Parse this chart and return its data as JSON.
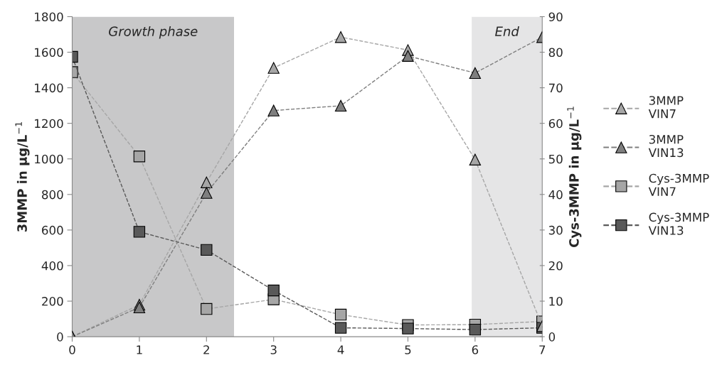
{
  "chart_data": {
    "type": "line",
    "x": [
      0,
      1,
      2,
      3,
      4,
      5,
      6,
      7
    ],
    "xlim": [
      0,
      7
    ],
    "xticks": [
      0,
      1,
      2,
      3,
      4,
      5,
      6,
      7
    ],
    "ylim": [
      0,
      1800
    ],
    "yticks": [
      0,
      200,
      400,
      600,
      800,
      1000,
      1200,
      1400,
      1600,
      1800
    ],
    "y2lim": [
      0,
      90
    ],
    "y2ticks": [
      0,
      10,
      20,
      30,
      40,
      50,
      60,
      70,
      80,
      90
    ],
    "ylabel": "3MMP in µg/L$^{−1}$",
    "y2label": "Cys-3MMP in µg/L$^{−1}$",
    "line_style": "dashed",
    "grid": false,
    "legend": "right",
    "bands": [
      {
        "axis": "x",
        "from": 0,
        "to": 2.41,
        "label": "Growth phase",
        "color": "#c8c8c9"
      },
      {
        "axis": "x",
        "from": 5.95,
        "to": 7,
        "label": "End",
        "color": "#e5e5e6"
      }
    ],
    "series": [
      {
        "name": "3MMP\nVIN7",
        "color": "#a6a6a6",
        "marker": "triangle",
        "values": [
          0,
          180,
          868,
          1512,
          1685,
          1612,
          996,
          60
        ]
      },
      {
        "name": "3MMP\nVIN13",
        "color": "#7f7f7f",
        "marker": "triangle",
        "values": [
          0,
          165,
          809,
          1272,
          1299,
          1579,
          1483,
          1685
        ]
      },
      {
        "name": "Cys-3MMP\nVIN7",
        "color": "#a6a6a6",
        "marker": "square",
        "axis": "y2",
        "values": [
          74.4,
          50.7,
          7.8,
          10.5,
          6.2,
          3.3,
          3.4,
          4.3
        ]
      },
      {
        "name": "Cys-3MMP\nVIN13",
        "color": "#595959",
        "marker": "square",
        "axis": "y2",
        "values": [
          78.7,
          29.5,
          24.4,
          13,
          2.5,
          2.3,
          2,
          2.5
        ]
      }
    ]
  }
}
